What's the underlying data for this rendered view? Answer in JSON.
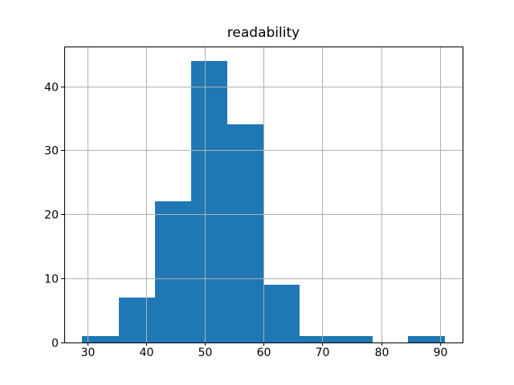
{
  "figure": {
    "background_color": "#ffffff"
  },
  "chart_data": {
    "type": "bar",
    "subtype": "histogram",
    "title": "readability",
    "xlabel": "",
    "ylabel": "",
    "bin_edges": [
      29.1,
      35.3,
      41.5,
      47.6,
      53.8,
      60.0,
      66.1,
      72.3,
      78.5,
      84.6,
      90.8
    ],
    "counts": [
      1,
      7,
      22,
      44,
      34,
      9,
      1,
      1,
      0,
      1
    ],
    "xticks": [
      30,
      40,
      50,
      60,
      70,
      80,
      90
    ],
    "yticks": [
      0,
      10,
      20,
      30,
      40
    ],
    "xlim": [
      26.06,
      93.87
    ],
    "ylim": [
      0,
      46.2
    ],
    "grid": true,
    "grid_above_bars": true,
    "legend_position": "none",
    "bar_color": "#1f77b4",
    "grid_color": "#b0b0b0",
    "axis_color": "#000000",
    "text_color": "#000000"
  }
}
